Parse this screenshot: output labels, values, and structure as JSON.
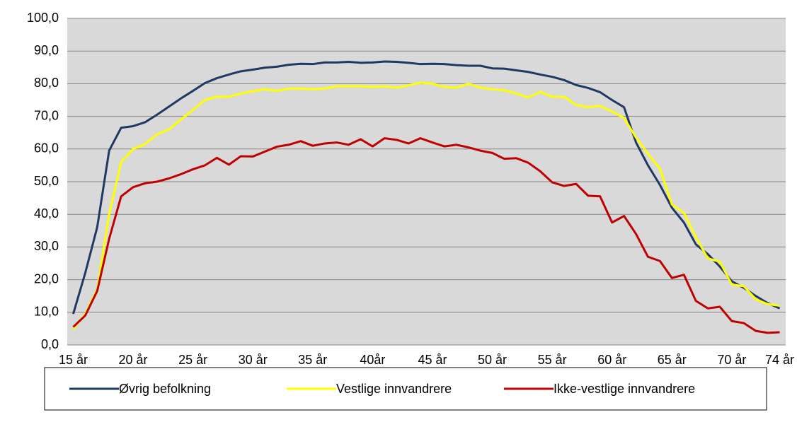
{
  "chart_data": {
    "type": "line",
    "categories": [
      "15 år",
      null,
      null,
      null,
      null,
      "20 år",
      null,
      null,
      null,
      null,
      "25 år",
      null,
      null,
      null,
      null,
      "30 år",
      null,
      null,
      null,
      null,
      "35 år",
      null,
      null,
      null,
      null,
      "40år",
      null,
      null,
      null,
      null,
      "45 år",
      null,
      null,
      null,
      null,
      "50 år",
      null,
      null,
      null,
      null,
      "55 år",
      null,
      null,
      null,
      null,
      "60 år",
      null,
      null,
      null,
      null,
      "65 år",
      null,
      null,
      null,
      null,
      "70 år",
      null,
      null,
      null,
      "74 år"
    ],
    "series": [
      {
        "name": "Øvrig befolkning",
        "color": "#1f3864",
        "values": [
          9.5,
          22,
          36,
          59.5,
          66.5,
          67,
          68.2,
          70.5,
          73,
          75.5,
          77.8,
          80.2,
          81.7,
          82.8,
          83.8,
          84.3,
          84.9,
          85.2,
          85.8,
          86.1,
          86.0,
          86.5,
          86.5,
          86.7,
          86.4,
          86.5,
          86.8,
          86.7,
          86.4,
          86.0,
          86.1,
          86.0,
          85.7,
          85.5,
          85.5,
          84.7,
          84.6,
          84.1,
          83.6,
          82.8,
          82.1,
          81.1,
          79.6,
          78.7,
          77.4,
          75.0,
          72.8,
          62.0,
          55.0,
          49.0,
          42.0,
          37.5,
          30.8,
          27.8,
          24.0,
          19.5,
          17.5,
          15.0,
          12.8,
          11.2
        ]
      },
      {
        "name": "Vestlige innvandrere",
        "color": "#ffff00",
        "values": [
          4.8,
          9.5,
          17,
          40,
          56,
          60,
          61.5,
          64.5,
          66,
          69,
          72,
          75,
          76,
          76,
          77,
          77.7,
          78.3,
          77.8,
          78.5,
          78.5,
          78.3,
          78.5,
          79.2,
          79.2,
          79.2,
          79.0,
          79.2,
          78.8,
          79.5,
          80.3,
          80.0,
          79.0,
          78.8,
          80.0,
          78.8,
          78.3,
          78.0,
          77.0,
          75.8,
          77.5,
          76.0,
          76.0,
          73.5,
          72.8,
          73.2,
          71.5,
          69.5,
          63.5,
          58.5,
          54.0,
          43.0,
          40.5,
          33.0,
          26.5,
          25.5,
          18.5,
          18.0,
          14.0,
          12.5,
          12.0
        ]
      },
      {
        "name": "Ikke-vestlige innvandrere",
        "color": "#c00000",
        "values": [
          5.5,
          9,
          16.5,
          32.5,
          45.5,
          48.3,
          49.5,
          50.0,
          51.0,
          52.3,
          53.8,
          55.0,
          57.3,
          55.2,
          57.8,
          57.7,
          59.2,
          60.7,
          61.3,
          62.4,
          61.0,
          61.7,
          62.0,
          61.3,
          63.0,
          60.8,
          63.3,
          62.8,
          61.7,
          63.3,
          62.0,
          60.8,
          61.3,
          60.5,
          59.5,
          58.8,
          57.0,
          57.2,
          55.8,
          53.2,
          49.8,
          48.7,
          49.3,
          45.7,
          45.5,
          37.5,
          39.5,
          34.0,
          27.0,
          25.7,
          20.5,
          21.5,
          13.5,
          11.2,
          11.7,
          7.3,
          6.7,
          4.3,
          3.7,
          3.9
        ]
      }
    ],
    "ylim": [
      0,
      100
    ],
    "yticks": [
      {
        "value": 0,
        "label": "0,0"
      },
      {
        "value": 10,
        "label": "10,0"
      },
      {
        "value": 20,
        "label": "20,0"
      },
      {
        "value": 30,
        "label": "30,0"
      },
      {
        "value": 40,
        "label": "40,0"
      },
      {
        "value": 50,
        "label": "50,0"
      },
      {
        "value": 60,
        "label": "60,0"
      },
      {
        "value": 70,
        "label": "70,0"
      },
      {
        "value": 80,
        "label": "80,0"
      },
      {
        "value": 90,
        "label": "90,0"
      },
      {
        "value": 100,
        "label": "100,0"
      }
    ],
    "grid": true,
    "legend": "bottom"
  }
}
